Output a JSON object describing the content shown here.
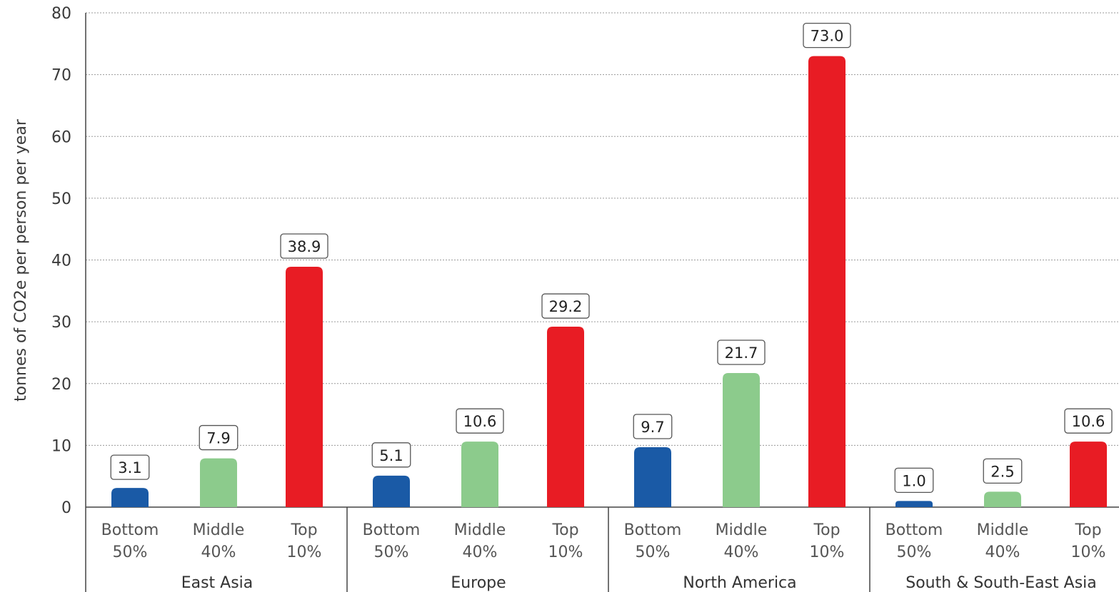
{
  "chart_data": {
    "type": "bar",
    "ylabel": "tonnes of CO2e per person per year",
    "ylim": [
      0,
      80
    ],
    "yticks": [
      "0",
      "10",
      "20",
      "30",
      "40",
      "50",
      "60",
      "70",
      "80"
    ],
    "grid": true,
    "groups": [
      {
        "name": "East Asia",
        "bars": [
          {
            "label_line1": "Bottom",
            "label_line2": "50%",
            "value": 3.1,
            "value_label": "3.1",
            "color": "#1a5aa6"
          },
          {
            "label_line1": "Middle",
            "label_line2": "40%",
            "value": 7.9,
            "value_label": "7.9",
            "color": "#8ccb8c"
          },
          {
            "label_line1": "Top",
            "label_line2": "10%",
            "value": 38.9,
            "value_label": "38.9",
            "color": "#e81c24"
          }
        ]
      },
      {
        "name": "Europe",
        "bars": [
          {
            "label_line1": "Bottom",
            "label_line2": "50%",
            "value": 5.1,
            "value_label": "5.1",
            "color": "#1a5aa6"
          },
          {
            "label_line1": "Middle",
            "label_line2": "40%",
            "value": 10.6,
            "value_label": "10.6",
            "color": "#8ccb8c"
          },
          {
            "label_line1": "Top",
            "label_line2": "10%",
            "value": 29.2,
            "value_label": "29.2",
            "color": "#e81c24"
          }
        ]
      },
      {
        "name": "North America",
        "bars": [
          {
            "label_line1": "Bottom",
            "label_line2": "50%",
            "value": 9.7,
            "value_label": "9.7",
            "color": "#1a5aa6"
          },
          {
            "label_line1": "Middle",
            "label_line2": "40%",
            "value": 21.7,
            "value_label": "21.7",
            "color": "#8ccb8c"
          },
          {
            "label_line1": "Top",
            "label_line2": "10%",
            "value": 73.0,
            "value_label": "73.0",
            "color": "#e81c24"
          }
        ]
      },
      {
        "name": "South & South-East Asia",
        "bars": [
          {
            "label_line1": "Bottom",
            "label_line2": "50%",
            "value": 1.0,
            "value_label": "1.0",
            "color": "#1a5aa6"
          },
          {
            "label_line1": "Middle",
            "label_line2": "40%",
            "value": 2.5,
            "value_label": "2.5",
            "color": "#8ccb8c"
          },
          {
            "label_line1": "Top",
            "label_line2": "10%",
            "value": 10.6,
            "value_label": "10.6",
            "color": "#e81c24"
          }
        ]
      }
    ]
  }
}
